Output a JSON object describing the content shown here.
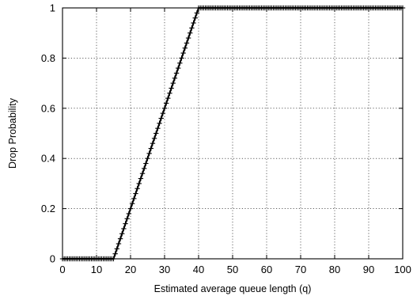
{
  "chart_data": {
    "type": "line",
    "title": "",
    "xlabel": "Estimated average queue length (q)",
    "ylabel": "Drop Probability",
    "xlim": [
      0,
      100
    ],
    "ylim": [
      0,
      1
    ],
    "xticks": [
      0,
      10,
      20,
      30,
      40,
      50,
      60,
      70,
      80,
      90,
      100
    ],
    "yticks": [
      0,
      0.2,
      0.4,
      0.6,
      0.8,
      1
    ],
    "xtick_labels": [
      "0",
      "10",
      "20",
      "30",
      "40",
      "50",
      "60",
      "70",
      "80",
      "90",
      "100"
    ],
    "ytick_labels": [
      "0",
      "0.2",
      "0.4",
      "0.6",
      "0.8",
      "1"
    ],
    "grid": true,
    "legend": "none",
    "series": [
      {
        "marker": "plus",
        "color": "#000000",
        "x": [
          0,
          15,
          40,
          100
        ],
        "y": [
          0,
          0,
          1,
          1
        ]
      }
    ]
  }
}
